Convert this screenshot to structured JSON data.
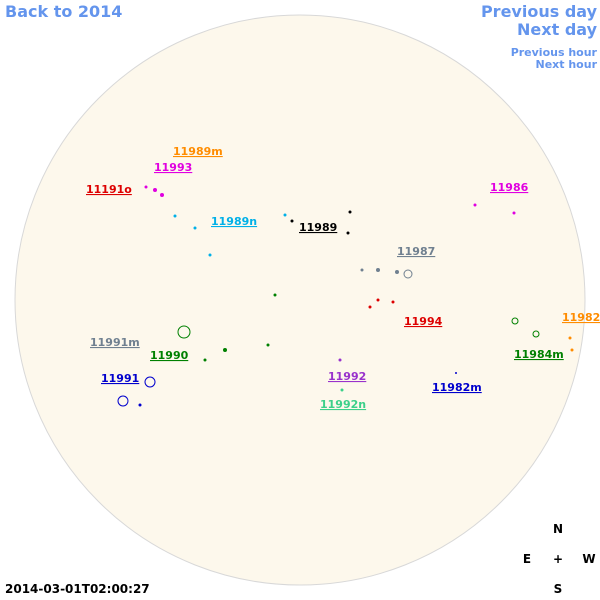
{
  "nav": {
    "back": "Back to 2014",
    "previous_day": "Previous day",
    "next_day": "Next day",
    "previous_hour": "Previous hour",
    "next_hour": "Next hour"
  },
  "regions": [
    {
      "label": "11989m",
      "color": "#ff8c00"
    },
    {
      "label": "11993",
      "color": "#e000e0"
    },
    {
      "label": "11191o",
      "color": "#dd0000"
    },
    {
      "label": "11986",
      "color": "#e000e0"
    },
    {
      "label": "11989n",
      "color": "#00b0e8"
    },
    {
      "label": "11989",
      "color": "#000000"
    },
    {
      "label": "11987",
      "color": "#708090"
    },
    {
      "label": "11994",
      "color": "#dd0000"
    },
    {
      "label": "11982",
      "color": "#ff8c00"
    },
    {
      "label": "11991m",
      "color": "#708090"
    },
    {
      "label": "11990",
      "color": "#008000"
    },
    {
      "label": "11984m",
      "color": "#008000"
    },
    {
      "label": "11992",
      "color": "#9932cc"
    },
    {
      "label": "11991",
      "color": "#0000cd"
    },
    {
      "label": "11982m",
      "color": "#0000cd"
    },
    {
      "label": "11992n",
      "color": "#3cd08a"
    }
  ],
  "compass": {
    "north": "N",
    "east": "E",
    "center": "+",
    "west": "W",
    "south": "S"
  },
  "timestamp": "2014-03-01T02:00:27"
}
